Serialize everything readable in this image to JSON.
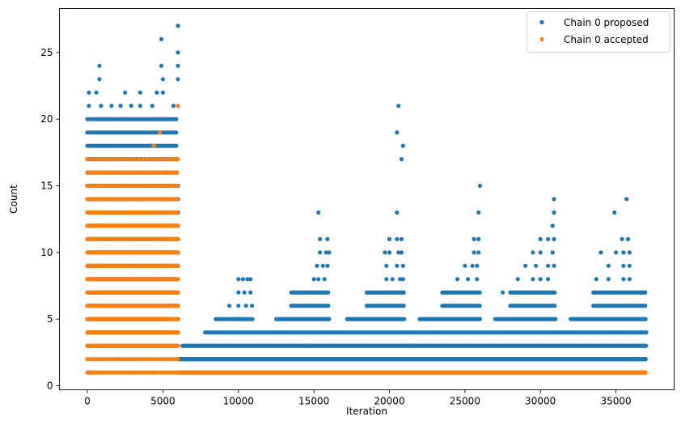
{
  "chart_data": {
    "type": "scatter",
    "xlabel": "Iteration",
    "ylabel": "Count",
    "xlim": [
      -1850,
      38850
    ],
    "ylim": [
      -0.3,
      28.3
    ],
    "xticks": [
      0,
      5000,
      10000,
      15000,
      20000,
      25000,
      30000,
      35000
    ],
    "yticks": [
      0,
      5,
      10,
      15,
      20,
      25
    ],
    "legend_position": "top-right",
    "colors": {
      "proposed": "#1f77b4",
      "accepted": "#ff7f0e"
    },
    "series": [
      {
        "name": "Chain 0 proposed",
        "color": "#1f77b4",
        "bands": [
          {
            "x0": 0,
            "x1": 6000,
            "step": 75,
            "yvals": [
              3,
              4,
              5,
              6,
              7,
              8,
              9,
              10,
              11,
              12,
              13,
              14,
              15
            ]
          },
          {
            "x0": 0,
            "x1": 6000,
            "step": 140,
            "yvals": [
              16,
              17,
              18,
              19,
              20
            ]
          },
          {
            "x0": 6000,
            "x1": 37000,
            "step": 45,
            "yvals": [
              2
            ]
          },
          {
            "x0": 6300,
            "x1": 37000,
            "step": 45,
            "yvals": [
              3
            ]
          },
          {
            "x0": 7800,
            "x1": 37000,
            "step": 100,
            "yvals": [
              4
            ]
          },
          {
            "x0": 8500,
            "x1": 11000,
            "step": 110,
            "yvals": [
              5
            ]
          },
          {
            "x0": 12500,
            "x1": 16000,
            "step": 70,
            "yvals": [
              5
            ]
          },
          {
            "x0": 17200,
            "x1": 21000,
            "step": 70,
            "yvals": [
              5
            ]
          },
          {
            "x0": 22000,
            "x1": 26000,
            "step": 80,
            "yvals": [
              5
            ]
          },
          {
            "x0": 27000,
            "x1": 31000,
            "step": 70,
            "yvals": [
              5
            ]
          },
          {
            "x0": 32000,
            "x1": 37000,
            "step": 80,
            "yvals": [
              5
            ]
          },
          {
            "x0": 13500,
            "x1": 16000,
            "step": 70,
            "yvals": [
              6,
              7
            ]
          },
          {
            "x0": 18500,
            "x1": 21000,
            "step": 70,
            "yvals": [
              6,
              7
            ]
          },
          {
            "x0": 23500,
            "x1": 26000,
            "step": 80,
            "yvals": [
              6,
              7
            ]
          },
          {
            "x0": 28000,
            "x1": 31000,
            "step": 70,
            "yvals": [
              6,
              7
            ]
          },
          {
            "x0": 33500,
            "x1": 37000,
            "step": 80,
            "yvals": [
              6,
              7
            ]
          }
        ],
        "points": [
          [
            100,
            1
          ],
          [
            300,
            1
          ],
          [
            800,
            1
          ],
          [
            100,
            21
          ],
          [
            900,
            21
          ],
          [
            1600,
            21
          ],
          [
            2200,
            21
          ],
          [
            2900,
            21
          ],
          [
            3500,
            21
          ],
          [
            4300,
            21
          ],
          [
            5700,
            21
          ],
          [
            100,
            22
          ],
          [
            600,
            22
          ],
          [
            2500,
            22
          ],
          [
            3500,
            22
          ],
          [
            4600,
            22
          ],
          [
            5000,
            22
          ],
          [
            800,
            23
          ],
          [
            5000,
            23
          ],
          [
            6000,
            23
          ],
          [
            800,
            24
          ],
          [
            4900,
            24
          ],
          [
            6000,
            24
          ],
          [
            4900,
            26
          ],
          [
            6000,
            25
          ],
          [
            6000,
            27
          ],
          [
            9000,
            5
          ],
          [
            10000,
            5
          ],
          [
            10500,
            5
          ],
          [
            9400,
            6
          ],
          [
            10000,
            6
          ],
          [
            10500,
            6
          ],
          [
            10900,
            6
          ],
          [
            10000,
            7
          ],
          [
            10400,
            7
          ],
          [
            10800,
            7
          ],
          [
            10000,
            8
          ],
          [
            10300,
            8
          ],
          [
            10600,
            8
          ],
          [
            10800,
            8
          ],
          [
            15000,
            8
          ],
          [
            15300,
            8
          ],
          [
            15700,
            8
          ],
          [
            15200,
            9
          ],
          [
            15600,
            9
          ],
          [
            15900,
            9
          ],
          [
            15400,
            10
          ],
          [
            15800,
            10
          ],
          [
            16000,
            10
          ],
          [
            15400,
            11
          ],
          [
            15900,
            11
          ],
          [
            15300,
            13
          ],
          [
            19800,
            8
          ],
          [
            20200,
            8
          ],
          [
            20700,
            8
          ],
          [
            20900,
            8
          ],
          [
            19800,
            9
          ],
          [
            20500,
            9
          ],
          [
            20900,
            9
          ],
          [
            19700,
            10
          ],
          [
            20000,
            10
          ],
          [
            20600,
            10
          ],
          [
            20800,
            10
          ],
          [
            20000,
            11
          ],
          [
            20500,
            11
          ],
          [
            20800,
            11
          ],
          [
            20500,
            13
          ],
          [
            20800,
            17
          ],
          [
            20900,
            18
          ],
          [
            20500,
            19
          ],
          [
            20600,
            21
          ],
          [
            24500,
            8
          ],
          [
            25200,
            8
          ],
          [
            25800,
            8
          ],
          [
            25000,
            9
          ],
          [
            25500,
            9
          ],
          [
            25800,
            9
          ],
          [
            25600,
            10
          ],
          [
            25900,
            10
          ],
          [
            25600,
            11
          ],
          [
            25900,
            11
          ],
          [
            25900,
            13
          ],
          [
            26000,
            15
          ],
          [
            27500,
            7
          ],
          [
            28500,
            8
          ],
          [
            29500,
            8
          ],
          [
            30000,
            8
          ],
          [
            30500,
            8
          ],
          [
            29000,
            9
          ],
          [
            29700,
            9
          ],
          [
            30500,
            9
          ],
          [
            30900,
            9
          ],
          [
            29500,
            10
          ],
          [
            30000,
            10
          ],
          [
            30800,
            10
          ],
          [
            30000,
            11
          ],
          [
            30500,
            11
          ],
          [
            30900,
            11
          ],
          [
            30800,
            12
          ],
          [
            30900,
            13
          ],
          [
            30900,
            14
          ],
          [
            33700,
            8
          ],
          [
            34500,
            8
          ],
          [
            35500,
            8
          ],
          [
            35900,
            8
          ],
          [
            34500,
            9
          ],
          [
            35500,
            9
          ],
          [
            35900,
            9
          ],
          [
            34000,
            10
          ],
          [
            35000,
            10
          ],
          [
            35500,
            10
          ],
          [
            35900,
            10
          ],
          [
            35400,
            11
          ],
          [
            35800,
            11
          ],
          [
            34900,
            13
          ],
          [
            35700,
            14
          ]
        ]
      },
      {
        "name": "Chain 0 accepted",
        "color": "#ff7f0e",
        "bands": [
          {
            "x0": 0,
            "x1": 6000,
            "step": 45,
            "yvals": [
              3,
              4,
              5,
              6,
              7,
              8,
              9,
              10,
              11,
              12
            ]
          },
          {
            "x0": 0,
            "x1": 6000,
            "step": 110,
            "yvals": [
              13,
              14
            ]
          },
          {
            "x0": 0,
            "x1": 6000,
            "step": 180,
            "yvals": [
              15,
              16
            ]
          },
          {
            "x0": 0,
            "x1": 6000,
            "step": 260,
            "yvals": [
              17
            ]
          },
          {
            "x0": 0,
            "x1": 6000,
            "step": 200,
            "yvals": [
              2
            ]
          },
          {
            "x0": 0,
            "x1": 6000,
            "step": 160,
            "yvals": [
              1
            ]
          },
          {
            "x0": 6000,
            "x1": 37000,
            "step": 45,
            "yvals": [
              1
            ]
          }
        ],
        "points": [
          [
            4800,
            19
          ],
          [
            4400,
            18
          ],
          [
            6000,
            21
          ],
          [
            5600,
            17
          ],
          [
            2300,
            16
          ],
          [
            4000,
            16
          ],
          [
            5100,
            16
          ],
          [
            5900,
            16
          ]
        ]
      }
    ]
  }
}
